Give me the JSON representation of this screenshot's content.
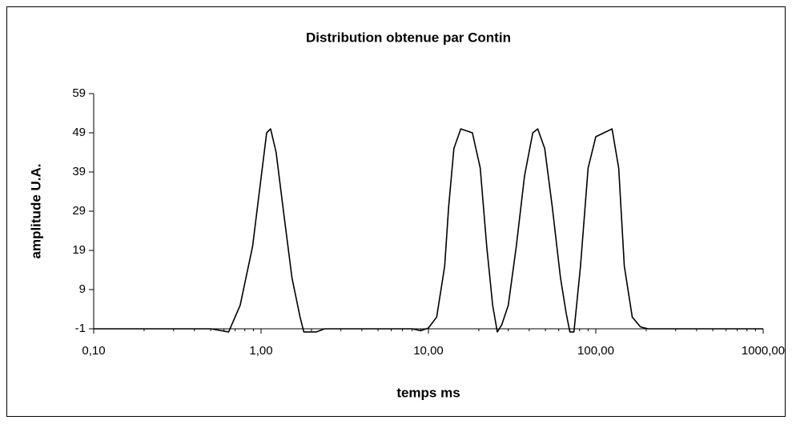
{
  "chart_data": {
    "type": "line",
    "title": "Distribution obtenue par Contin",
    "xlabel": "temps ms",
    "ylabel": "amplitude U.A.",
    "xscale": "log",
    "grid": false,
    "xlim": [
      0.1,
      1000
    ],
    "xticks": [
      {
        "value": 0.1,
        "label": "0,10"
      },
      {
        "value": 1,
        "label": "1,00"
      },
      {
        "value": 10,
        "label": "10,00"
      },
      {
        "value": 100,
        "label": "100,00"
      },
      {
        "value": 1000,
        "label": "1000,00"
      }
    ],
    "ylim": [
      -1,
      59
    ],
    "yticks": [
      -1,
      9,
      19,
      29,
      39,
      49,
      59
    ],
    "series": [
      {
        "color": "#000000",
        "x": [
          0.1,
          0.5,
          0.64,
          0.75,
          0.89,
          0.99,
          1.08,
          1.14,
          1.23,
          1.37,
          1.53,
          1.71,
          1.8,
          2.14,
          2.4,
          8,
          9,
          10,
          11.2,
          12.5,
          13.2,
          14.2,
          15.6,
          18.3,
          20.4,
          22.3,
          24.2,
          25.8,
          27.4,
          30,
          33.5,
          37.5,
          42,
          45,
          49.5,
          55,
          61.5,
          66.5,
          70,
          74,
          81,
          90,
          100,
          125,
          137,
          148,
          165,
          185,
          205,
          1000
        ],
        "values": [
          -1,
          -1,
          -1.8,
          5,
          20,
          36,
          49,
          50,
          44,
          28,
          12,
          2,
          -1.8,
          -1.8,
          -1,
          -1,
          -1.5,
          -0.8,
          2,
          15,
          30,
          45,
          50,
          49,
          40,
          20,
          5,
          -1.8,
          0,
          5,
          20,
          38,
          49,
          50,
          45,
          30,
          12,
          3,
          -1.8,
          -1.8,
          15,
          40,
          48,
          50,
          40,
          15,
          2,
          -0.5,
          -1,
          -1
        ]
      }
    ]
  }
}
